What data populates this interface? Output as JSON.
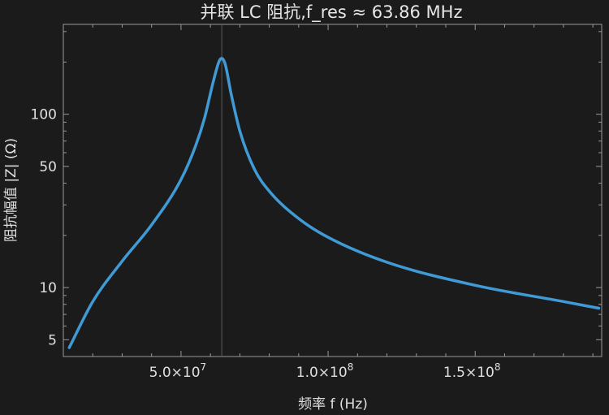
{
  "chart_data": {
    "type": "line",
    "title": "并联 LC 阻抗,f_res ≈ 63.86 MHz",
    "xlabel": "频率 f (Hz)",
    "ylabel": "阻抗幅值 |Z| (Ω)",
    "xlim": [
      10000000,
      193000000
    ],
    "ylim": [
      4,
      330
    ],
    "yscale": "log",
    "grid": false,
    "resonance_marker_x": 63860000,
    "x_ticks": [
      {
        "value": 50000000,
        "mantissa": "5.0",
        "times": "×10",
        "exp": "7"
      },
      {
        "value": 100000000,
        "mantissa": "1.0",
        "times": "×10",
        "exp": "8"
      },
      {
        "value": 150000000,
        "mantissa": "1.5",
        "times": "×10",
        "exp": "8"
      }
    ],
    "y_ticks": [
      {
        "value": 5,
        "label": "5"
      },
      {
        "value": 10,
        "label": "10"
      },
      {
        "value": 50,
        "label": "50"
      },
      {
        "value": 100,
        "label": "100"
      }
    ],
    "series": [
      {
        "color": "#3f9ad5",
        "x": [
          12000000,
          20000000,
          30000000,
          40000000,
          50000000,
          55000000,
          58000000,
          61000000,
          63000000,
          63860000,
          65000000,
          67000000,
          70000000,
          75000000,
          80000000,
          90000000,
          100000000,
          120000000,
          150000000,
          180000000,
          192000000
        ],
        "y": [
          4.5,
          8.3,
          14.2,
          23,
          42,
          66,
          95,
          155,
          203,
          210,
          195,
          132,
          80,
          48,
          36,
          25,
          19.5,
          14,
          10.3,
          8.3,
          7.6
        ]
      }
    ]
  }
}
